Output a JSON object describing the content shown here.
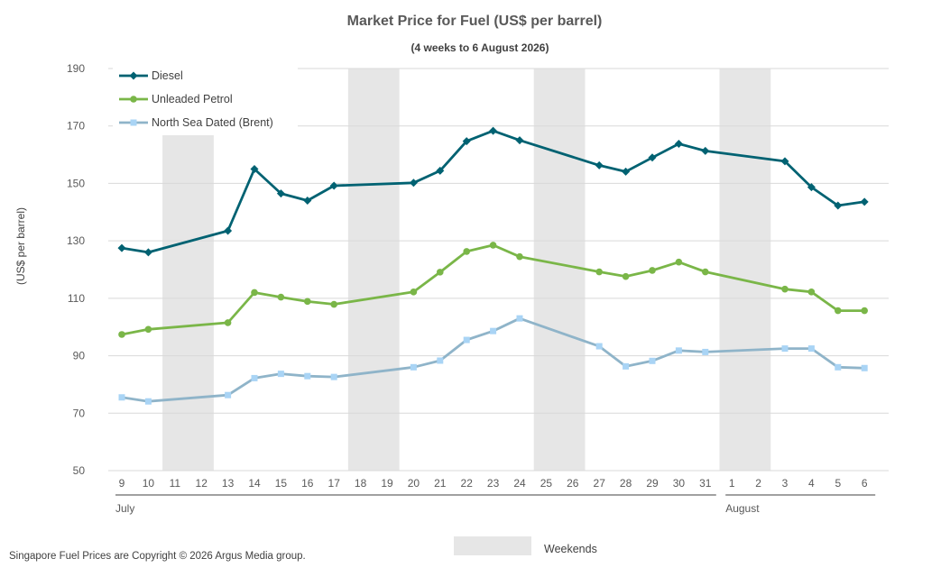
{
  "chart_data": {
    "type": "line",
    "title": "Market Price for Fuel (US$ per barrel)",
    "subtitle": "(4 weeks to 6 August 2026)",
    "ylabel": "(US$ per barrel)",
    "ylim": [
      50,
      190
    ],
    "yticks": [
      50,
      70,
      90,
      110,
      130,
      150,
      170,
      190
    ],
    "grid": true,
    "legend_position": "top-left",
    "x": [
      "9",
      "10",
      "11",
      "12",
      "13",
      "14",
      "15",
      "16",
      "17",
      "18",
      "19",
      "20",
      "21",
      "22",
      "23",
      "24",
      "25",
      "26",
      "27",
      "28",
      "29",
      "30",
      "31",
      "1",
      "2",
      "3",
      "4",
      "5",
      "6"
    ],
    "month_labels": [
      {
        "label": "July",
        "start_index": 0,
        "end_index": 22
      },
      {
        "label": "August",
        "start_index": 23,
        "end_index": 28
      }
    ],
    "weekend_index_ranges": [
      [
        2,
        3
      ],
      [
        9,
        10
      ],
      [
        16,
        17
      ],
      [
        23,
        24
      ]
    ],
    "weekend_legend_label": "Weekends",
    "series": [
      {
        "name": "Diesel",
        "color": "#006272",
        "marker": "diamond",
        "values": [
          127.5,
          126,
          null,
          null,
          133.5,
          155,
          146.5,
          144,
          149.2,
          null,
          null,
          150.2,
          154.4,
          164.7,
          168.3,
          165,
          null,
          null,
          156.3,
          154.1,
          159,
          163.8,
          161.3,
          null,
          null,
          157.7,
          148.7,
          142.3,
          143.6
        ]
      },
      {
        "name": "Unleaded Petrol",
        "color": "#7ab648",
        "marker": "circle",
        "values": [
          97.4,
          99.2,
          null,
          null,
          101.5,
          112,
          110.4,
          108.9,
          107.9,
          null,
          null,
          112.2,
          119.1,
          126.3,
          128.5,
          124.5,
          null,
          null,
          119.2,
          117.6,
          119.7,
          122.6,
          119.2,
          null,
          null,
          113.2,
          112.2,
          105.7,
          105.7
        ]
      },
      {
        "name": "North Sea Dated (Brent)",
        "color": "#8fb4c9",
        "marker": "square",
        "marker_color": "#a9d4f5",
        "values": [
          75.5,
          74.1,
          null,
          null,
          76.3,
          82.2,
          83.7,
          82.9,
          82.6,
          null,
          null,
          86,
          88.3,
          95.5,
          98.6,
          103,
          null,
          null,
          93.3,
          86.3,
          88.2,
          91.8,
          91.3,
          null,
          null,
          92.5,
          92.5,
          86,
          85.7
        ]
      }
    ]
  },
  "footer": {
    "copyright": "Singapore Fuel Prices are Copyright © 2026 Argus Media group."
  }
}
